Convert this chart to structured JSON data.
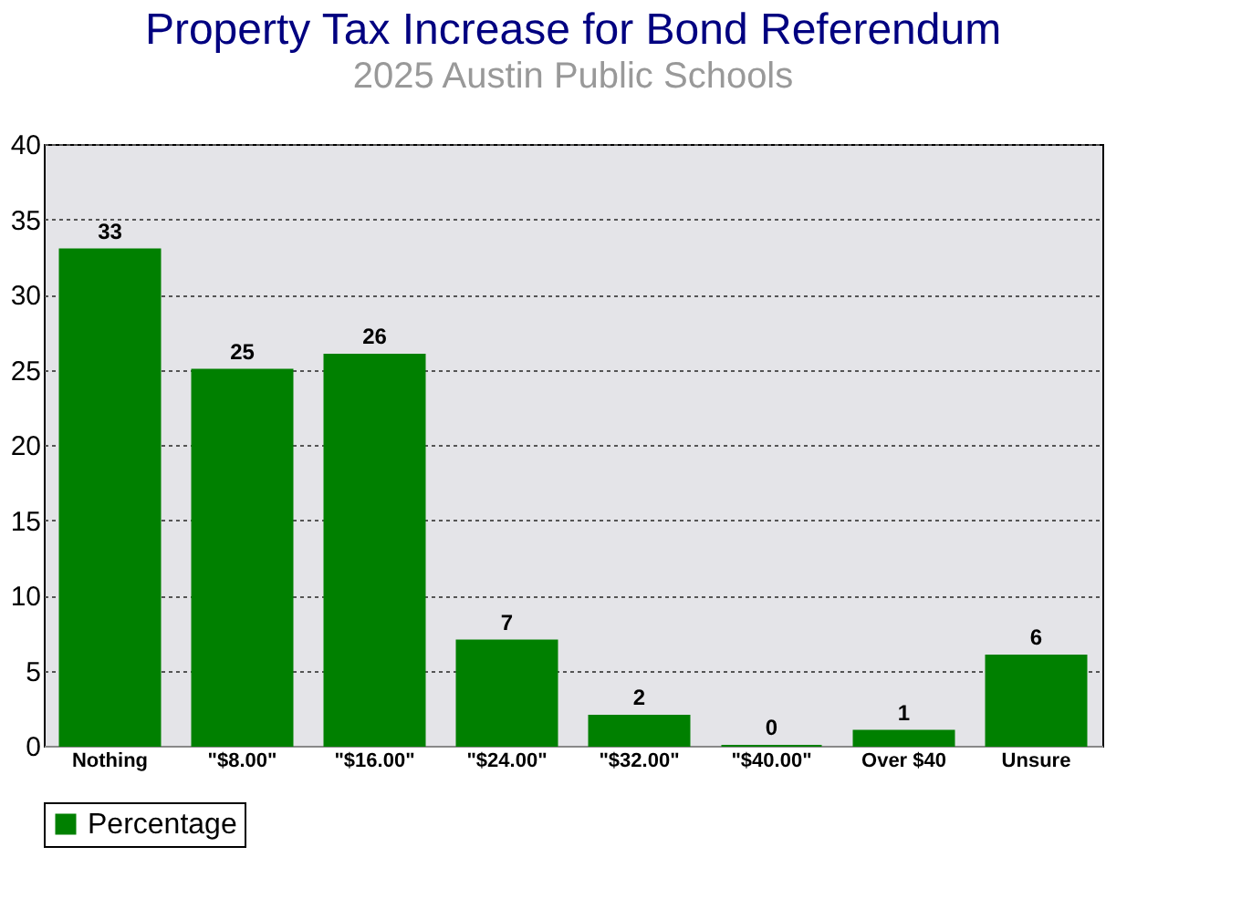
{
  "chart_data": {
    "type": "bar",
    "title": "Property Tax Increase for Bond Referendum",
    "subtitle": "2025 Austin Public Schools",
    "categories": [
      "Nothing",
      "\"$8.00\"",
      "\"$16.00\"",
      "\"$24.00\"",
      "\"$32.00\"",
      "\"$40.00\"",
      "Over $40",
      "Unsure"
    ],
    "series": [
      {
        "name": "Percentage",
        "color": "#008000",
        "values": [
          33,
          25,
          26,
          7,
          2,
          0,
          1,
          6
        ]
      }
    ],
    "ylim": [
      0,
      40
    ],
    "yticks": [
      0,
      5,
      10,
      15,
      20,
      25,
      30,
      35,
      40
    ],
    "grid": "y",
    "legend": "bottom",
    "data_labels": true
  }
}
